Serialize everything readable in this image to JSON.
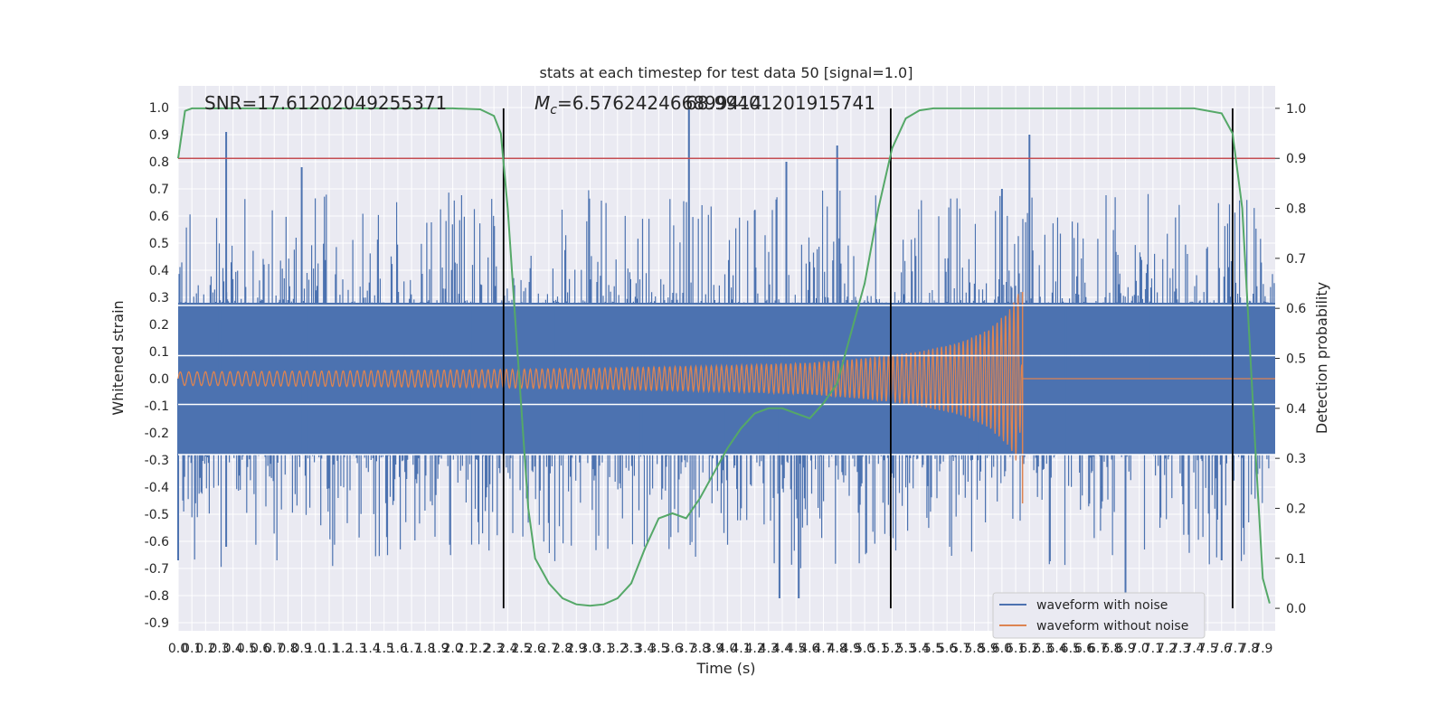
{
  "chart_data": {
    "type": "line",
    "title": "stats at each timestep for test data 50 [signal=1.0]",
    "xlabel": "Time (s)",
    "ylabel": "Whitened strain",
    "ylabel_right": "Detection probability",
    "xlim": [
      0.0,
      7.99
    ],
    "ylim": [
      -0.93,
      1.08
    ],
    "ylim_right": [
      -0.045,
      1.045
    ],
    "x_ticks": [
      "0.0",
      "0.1",
      "0.2",
      "0.3",
      "0.4",
      "0.5",
      "0.6",
      "0.7",
      "0.8",
      "0.9",
      "1.0",
      "1.1",
      "1.2",
      "1.3",
      "1.4",
      "1.5",
      "1.6",
      "1.7",
      "1.8",
      "1.9",
      "2.0",
      "2.1",
      "2.2",
      "2.3",
      "2.4",
      "2.5",
      "2.6",
      "2.7",
      "2.8",
      "2.9",
      "3.0",
      "3.1",
      "3.2",
      "3.3",
      "3.4",
      "3.5",
      "3.6",
      "3.7",
      "3.8",
      "3.9",
      "4.0",
      "4.1",
      "4.2",
      "4.3",
      "4.4",
      "4.5",
      "4.6",
      "4.7",
      "4.8",
      "4.9",
      "5.0",
      "5.1",
      "5.2",
      "5.3",
      "5.4",
      "5.5",
      "5.6",
      "5.7",
      "5.8",
      "5.9",
      "6.0",
      "6.1",
      "6.2",
      "6.3",
      "6.4",
      "6.5",
      "6.6",
      "6.7",
      "6.8",
      "6.9",
      "7.0",
      "7.1",
      "7.2",
      "7.3",
      "7.4",
      "7.5",
      "7.6",
      "7.7",
      "7.8",
      "7.9"
    ],
    "y_ticks": [
      "-0.9",
      "-0.8",
      "-0.7",
      "-0.6",
      "-0.5",
      "-0.4",
      "-0.3",
      "-0.2",
      "-0.1",
      "0.0",
      "0.1",
      "0.2",
      "0.3",
      "0.4",
      "0.5",
      "0.6",
      "0.7",
      "0.8",
      "0.9",
      "1.0"
    ],
    "y_ticks_right": [
      "0.0",
      "0.1",
      "0.2",
      "0.3",
      "0.4",
      "0.5",
      "0.6",
      "0.7",
      "0.8",
      "0.9",
      "1.0"
    ],
    "annotations": {
      "snr": "SNR=17.61202049255371",
      "mc1": "M",
      "mc_sub": "c",
      "mc2": "=6.576242466899414",
      "extra": "68.99401201915741"
    },
    "series": [
      {
        "name": "waveform with noise",
        "color": "#4c72b0",
        "amplitude": 0.28,
        "spikes": [
          [
            0.35,
            0.91
          ],
          [
            0.35,
            -0.62
          ],
          [
            0.9,
            0.78
          ],
          [
            3.72,
            1.0
          ],
          [
            4.2,
            0.62
          ],
          [
            4.38,
            -0.81
          ],
          [
            4.43,
            0.8
          ],
          [
            4.52,
            -0.81
          ],
          [
            4.8,
            0.86
          ],
          [
            6.2,
            0.9
          ],
          [
            6.0,
            0.7
          ],
          [
            6.9,
            -0.8
          ],
          [
            7.6,
            -0.67
          ],
          [
            0.0,
            -0.67
          ]
        ]
      },
      {
        "name": "waveform without noise",
        "color": "#dd8452",
        "chirp_points": [
          [
            0.0,
            0.025
          ],
          [
            1.0,
            0.028
          ],
          [
            2.0,
            0.032
          ],
          [
            3.0,
            0.038
          ],
          [
            4.0,
            0.048
          ],
          [
            4.6,
            0.058
          ],
          [
            5.0,
            0.075
          ],
          [
            5.4,
            0.1
          ],
          [
            5.7,
            0.135
          ],
          [
            5.9,
            0.18
          ],
          [
            6.05,
            0.25
          ],
          [
            6.12,
            0.32
          ],
          [
            6.15,
            0.0
          ],
          [
            7.99,
            0.0
          ]
        ]
      },
      {
        "name": "Detection probability",
        "color": "#55a868",
        "x": [
          0.0,
          0.05,
          0.1,
          0.2,
          0.3,
          0.5,
          1.0,
          1.5,
          2.0,
          2.2,
          2.3,
          2.35,
          2.4,
          2.45,
          2.5,
          2.55,
          2.6,
          2.7,
          2.8,
          2.9,
          3.0,
          3.1,
          3.2,
          3.3,
          3.4,
          3.5,
          3.6,
          3.7,
          3.8,
          3.9,
          4.0,
          4.1,
          4.2,
          4.3,
          4.4,
          4.5,
          4.6,
          4.7,
          4.8,
          4.9,
          5.0,
          5.1,
          5.2,
          5.3,
          5.4,
          5.5,
          5.6,
          5.8,
          6.0,
          7.0,
          7.4,
          7.6,
          7.68,
          7.75,
          7.8,
          7.85,
          7.9,
          7.95
        ],
        "y": [
          0.9,
          0.995,
          1.0,
          1.0,
          1.0,
          1.0,
          1.0,
          1.0,
          1.0,
          0.998,
          0.985,
          0.95,
          0.8,
          0.6,
          0.4,
          0.2,
          0.1,
          0.05,
          0.02,
          0.008,
          0.005,
          0.008,
          0.02,
          0.05,
          0.12,
          0.18,
          0.19,
          0.18,
          0.22,
          0.27,
          0.32,
          0.36,
          0.39,
          0.4,
          0.4,
          0.39,
          0.38,
          0.41,
          0.45,
          0.55,
          0.65,
          0.8,
          0.92,
          0.98,
          0.996,
          1.0,
          1.0,
          1.0,
          1.0,
          1.0,
          1.0,
          0.99,
          0.95,
          0.8,
          0.55,
          0.3,
          0.06,
          0.01
        ]
      },
      {
        "name": "threshold",
        "color": "#c44e52",
        "y_right": 0.9
      }
    ],
    "vertical_lines": [
      2.37,
      5.19,
      7.68
    ],
    "horizontal_white_lines": [
      0.27,
      0.085,
      -0.095,
      -0.28
    ],
    "grid": true,
    "legend_position": "lower-right"
  }
}
